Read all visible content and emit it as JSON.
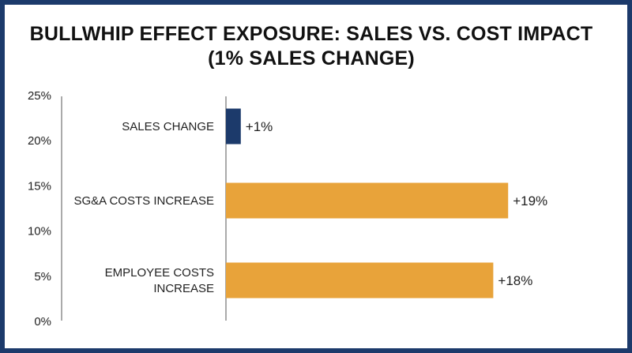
{
  "chart_data": {
    "type": "bar",
    "orientation": "horizontal",
    "title_lines": [
      "BULLWHIP EFFECT EXPOSURE: SALES VS. COST IMPACT",
      "(1% SALES CHANGE)"
    ],
    "y_axis_ticks": [
      "25%",
      "20%",
      "15%",
      "10%",
      "5%",
      "0%"
    ],
    "categories": [
      {
        "label_lines": [
          "SALES CHANGE"
        ],
        "value": 1,
        "data_label": "+1%",
        "color": "#1c3a6b"
      },
      {
        "label_lines": [
          "SG&A COSTS INCREASE"
        ],
        "value": 19,
        "data_label": "+19%",
        "color": "#e8a33a"
      },
      {
        "label_lines": [
          "EMPLOYEE COSTS",
          "INCREASE"
        ],
        "value": 18,
        "data_label": "+18%",
        "color": "#e8a33a"
      }
    ],
    "value_axis_range": [
      0,
      20
    ],
    "grid": false,
    "legend": "none"
  },
  "colors": {
    "frame": "#1c3a6b",
    "sales": "#1c3a6b",
    "costs": "#e8a33a"
  }
}
